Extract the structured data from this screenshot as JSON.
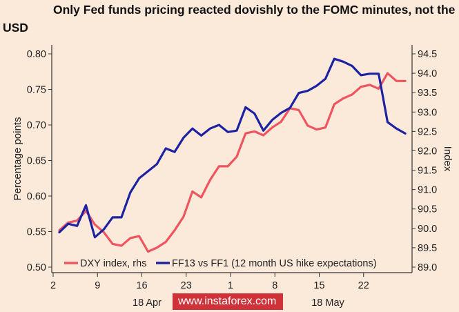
{
  "title_line1": "Only Fed funds pricing reacted dovishly to the FOMC minutes, not the",
  "title_line2": "USD",
  "watermark": "www.instaforex.com",
  "chart_data": {
    "type": "line",
    "title": "Only Fed funds pricing reacted dovishly to the FOMC minutes, not the USD",
    "ylabel_left": "Percentage points",
    "ylabel_right": "Index",
    "ylim_left": [
      0.5,
      0.8
    ],
    "ylim_right": [
      89.0,
      94.5
    ],
    "yticks_left": [
      "0.80",
      "0.75",
      "0.70",
      "0.65",
      "0.60",
      "0.55",
      "0.50"
    ],
    "yticks_right": [
      "94.5",
      "94.0",
      "93.5",
      "93.0",
      "92.5",
      "92.0",
      "91.5",
      "91.0",
      "90.5",
      "90.0",
      "89.5",
      "89.0"
    ],
    "xticks": [
      "2",
      "9",
      "16",
      "23",
      "1",
      "8",
      "15",
      "22"
    ],
    "month_labels": [
      "18 Apr",
      "18 May"
    ],
    "grid": false,
    "legend_position": "bottom",
    "series": [
      {
        "name": "DXY index, rhs",
        "axis": "right",
        "color": "#f0545f",
        "values": [
          89.95,
          90.15,
          90.2,
          90.45,
          90.1,
          89.9,
          89.6,
          89.55,
          89.75,
          89.8,
          89.4,
          89.5,
          89.65,
          89.95,
          90.3,
          90.95,
          90.8,
          91.25,
          91.6,
          91.6,
          91.85,
          92.45,
          92.5,
          92.4,
          92.6,
          92.75,
          93.1,
          93.05,
          92.65,
          92.55,
          92.6,
          93.2,
          93.35,
          93.45,
          93.65,
          93.7,
          93.6,
          94.0,
          93.8,
          93.8
        ]
      },
      {
        "name": "FF13 vs FF1 (12 month US hike expectations)",
        "axis": "left",
        "color": "#1d22a3",
        "values": [
          0.549,
          0.561,
          0.558,
          0.587,
          0.542,
          0.553,
          0.57,
          0.57,
          0.605,
          0.625,
          0.635,
          0.645,
          0.667,
          0.662,
          0.682,
          0.695,
          0.685,
          0.695,
          0.7,
          0.69,
          0.692,
          0.725,
          0.716,
          0.692,
          0.707,
          0.717,
          0.724,
          0.745,
          0.748,
          0.755,
          0.765,
          0.793,
          0.789,
          0.783,
          0.77,
          0.772,
          0.772,
          0.704,
          0.695,
          0.688
        ]
      }
    ]
  }
}
